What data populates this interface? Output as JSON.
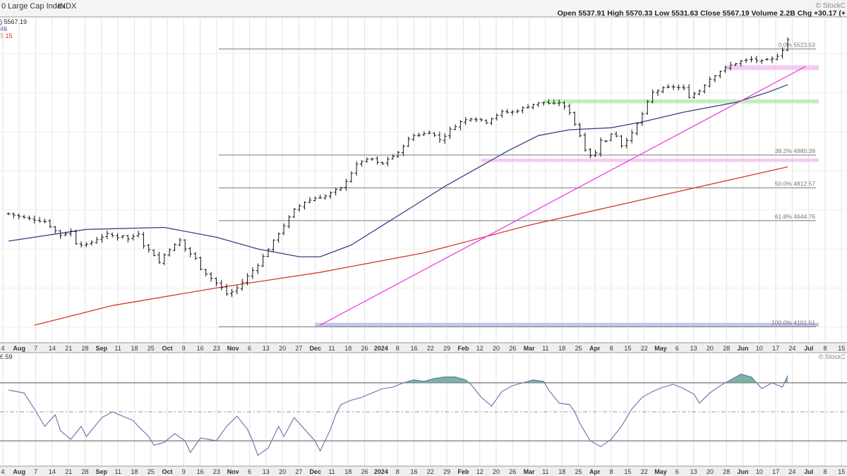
{
  "header": {
    "title": "0 Large Cap Index",
    "exchange": "INDX",
    "brand": "© StockC",
    "ohlc": "Open 5537.91  High 5570.33  Low 5531.63  Close 5567.19  Volume 2.2B  Chg +30.17 (+",
    "last_label": ") 5567.19",
    "ma50_label": "46",
    "ma200_label": "7.15",
    "brand2": "© StockC",
    "rsi_label": "6.59"
  },
  "colors": {
    "price": "#111111",
    "ma50": "#3b3f86",
    "ma200": "#d23a2a",
    "trendline": "#ee33dd",
    "fib_line": "#777777",
    "zone_green": "#b9eab0",
    "zone_pink": "#f2c3ee",
    "zone_blue": "#b9bde6",
    "rsi_line": "#6a6fa8",
    "rsi_fill": "#6ea89c",
    "grid": "#e2e2e2"
  },
  "chart_data": [
    {
      "type": "line",
      "subtype": "ohlc",
      "x_labels": [
        "4",
        "Aug",
        "7",
        "14",
        "21",
        "28",
        "Sep",
        "11",
        "18",
        "25",
        "Oct",
        "9",
        "16",
        "23",
        "Nov",
        "6",
        "13",
        "20",
        "27",
        "Dec",
        "11",
        "18",
        "26",
        "2024",
        "8",
        "16",
        "22",
        "29",
        "Feb",
        "12",
        "20",
        "26",
        "Mar",
        "11",
        "18",
        "25",
        "Apr",
        "8",
        "15",
        "22",
        "May",
        "6",
        "13",
        "20",
        "28",
        "Jun",
        "10",
        "17",
        "24",
        "Jul",
        "8",
        "15"
      ],
      "y_range": [
        4020,
        5680
      ],
      "fib_levels": [
        {
          "label": "0.0% 5523.53",
          "value": 5523.53
        },
        {
          "label": "38.2% 4980.39",
          "value": 4980.39
        },
        {
          "label": "50.0% 4812.57",
          "value": 4812.57
        },
        {
          "label": "61.8% 4644.76",
          "value": 4644.76
        },
        {
          "label": "100.0% 4101.51",
          "value": 4101.51
        }
      ],
      "close_path": [
        [
          0,
          4680
        ],
        [
          3,
          4660
        ],
        [
          7,
          4640
        ],
        [
          10,
          4570
        ],
        [
          12,
          4590
        ],
        [
          13,
          4530
        ],
        [
          15,
          4520
        ],
        [
          17,
          4550
        ],
        [
          19,
          4575
        ],
        [
          21,
          4560
        ],
        [
          22,
          4570
        ],
        [
          23,
          4550
        ],
        [
          25,
          4580
        ],
        [
          26,
          4520
        ],
        [
          28,
          4470
        ],
        [
          29,
          4430
        ],
        [
          30,
          4470
        ],
        [
          31,
          4500
        ],
        [
          32,
          4520
        ],
        [
          33,
          4545
        ],
        [
          34,
          4500
        ],
        [
          36,
          4450
        ],
        [
          37,
          4400
        ],
        [
          39,
          4350
        ],
        [
          41,
          4300
        ],
        [
          42,
          4270
        ],
        [
          43,
          4280
        ],
        [
          44,
          4300
        ],
        [
          45,
          4330
        ],
        [
          46,
          4360
        ],
        [
          47,
          4390
        ],
        [
          48,
          4420
        ],
        [
          49,
          4460
        ],
        [
          50,
          4500
        ],
        [
          51,
          4540
        ],
        [
          52,
          4580
        ],
        [
          53,
          4620
        ],
        [
          54,
          4660
        ],
        [
          55,
          4700
        ],
        [
          57,
          4740
        ],
        [
          59,
          4760
        ],
        [
          61,
          4770
        ],
        [
          63,
          4800
        ],
        [
          64,
          4810
        ],
        [
          66,
          4890
        ],
        [
          67,
          4930
        ],
        [
          68,
          4950
        ],
        [
          70,
          4960
        ],
        [
          71,
          4940
        ],
        [
          72,
          4935
        ],
        [
          73,
          4960
        ],
        [
          75,
          4990
        ],
        [
          76,
          5030
        ],
        [
          77,
          5060
        ],
        [
          78,
          5080
        ],
        [
          80,
          5090
        ],
        [
          81,
          5100
        ],
        [
          82,
          5080
        ],
        [
          83,
          5060
        ],
        [
          84,
          5080
        ],
        [
          85,
          5110
        ],
        [
          87,
          5150
        ],
        [
          89,
          5170
        ],
        [
          91,
          5160
        ],
        [
          92,
          5150
        ],
        [
          93,
          5170
        ],
        [
          95,
          5200
        ],
        [
          97,
          5200
        ],
        [
          98,
          5210
        ],
        [
          100,
          5230
        ],
        [
          101,
          5240
        ],
        [
          103,
          5250
        ],
        [
          105,
          5240
        ],
        [
          106,
          5250
        ],
        [
          108,
          5200
        ],
        [
          109,
          5140
        ],
        [
          110,
          5080
        ],
        [
          111,
          5010
        ],
        [
          112,
          4980
        ],
        [
          113,
          4990
        ],
        [
          114,
          5060
        ],
        [
          115,
          5050
        ],
        [
          116,
          5090
        ],
        [
          117,
          5080
        ],
        [
          118,
          5030
        ],
        [
          120,
          5090
        ],
        [
          122,
          5190
        ],
        [
          123,
          5250
        ],
        [
          124,
          5300
        ],
        [
          126,
          5320
        ],
        [
          128,
          5330
        ],
        [
          130,
          5320
        ],
        [
          131,
          5280
        ],
        [
          133,
          5310
        ],
        [
          134,
          5340
        ],
        [
          135,
          5370
        ],
        [
          137,
          5410
        ],
        [
          139,
          5440
        ],
        [
          141,
          5460
        ],
        [
          143,
          5470
        ],
        [
          145,
          5460
        ],
        [
          147,
          5470
        ],
        [
          148,
          5490
        ],
        [
          149,
          5520
        ],
        [
          150,
          5570
        ]
      ],
      "ma50_path": [
        [
          0,
          4540
        ],
        [
          15,
          4600
        ],
        [
          30,
          4610
        ],
        [
          40,
          4560
        ],
        [
          48,
          4500
        ],
        [
          56,
          4460
        ],
        [
          60,
          4460
        ],
        [
          66,
          4520
        ],
        [
          72,
          4620
        ],
        [
          78,
          4720
        ],
        [
          84,
          4820
        ],
        [
          90,
          4910
        ],
        [
          96,
          5000
        ],
        [
          102,
          5080
        ],
        [
          108,
          5110
        ],
        [
          116,
          5120
        ],
        [
          122,
          5150
        ],
        [
          130,
          5200
        ],
        [
          140,
          5250
        ],
        [
          146,
          5300
        ],
        [
          150,
          5340
        ]
      ],
      "ma200_path": [
        [
          5,
          4110
        ],
        [
          20,
          4210
        ],
        [
          40,
          4300
        ],
        [
          60,
          4380
        ],
        [
          80,
          4480
        ],
        [
          100,
          4620
        ],
        [
          120,
          4740
        ],
        [
          140,
          4860
        ],
        [
          150,
          4920
        ]
      ],
      "trendline": {
        "start": [
          60,
          4110
        ],
        "end": [
          150,
          5390
        ]
      },
      "zones": [
        {
          "color": "green",
          "from_index": 103,
          "to_index": 156,
          "low": 5245,
          "high": 5265
        },
        {
          "color": "pink",
          "from_index": 138,
          "to_index": 156,
          "low": 5415,
          "high": 5440
        },
        {
          "color": "pink",
          "from_index": 91,
          "to_index": 156,
          "low": 4945,
          "high": 4962
        },
        {
          "color": "blue",
          "from_index": 59,
          "to_index": 156,
          "low": 4102,
          "high": 4122
        }
      ]
    },
    {
      "type": "line",
      "subtype": "rsi",
      "x_labels": [
        "4",
        "Aug",
        "7",
        "14",
        "21",
        "28",
        "Sep",
        "11",
        "18",
        "25",
        "Oct",
        "9",
        "16",
        "23",
        "Nov",
        "6",
        "13",
        "20",
        "27",
        "Dec",
        "11",
        "18",
        "26",
        "2024",
        "8",
        "16",
        "22",
        "29",
        "Feb",
        "12",
        "20",
        "26",
        "Mar",
        "11",
        "18",
        "25",
        "Apr",
        "8",
        "15",
        "22",
        "May",
        "6",
        "13",
        "20",
        "28",
        "Jun",
        "10",
        "17",
        "24",
        "Jul",
        "8",
        "15"
      ],
      "y_range": [
        15,
        85
      ],
      "levels": [
        70,
        50,
        30
      ],
      "path": [
        [
          0,
          65
        ],
        [
          3,
          63
        ],
        [
          5,
          52
        ],
        [
          7,
          40
        ],
        [
          9,
          48
        ],
        [
          10,
          37
        ],
        [
          12,
          31
        ],
        [
          14,
          40
        ],
        [
          15,
          33
        ],
        [
          18,
          46
        ],
        [
          20,
          50
        ],
        [
          22,
          47
        ],
        [
          24,
          44
        ],
        [
          25,
          40
        ],
        [
          27,
          33
        ],
        [
          28,
          27
        ],
        [
          30,
          29
        ],
        [
          32,
          35
        ],
        [
          34,
          30
        ],
        [
          35,
          22
        ],
        [
          37,
          32
        ],
        [
          40,
          30
        ],
        [
          42,
          40
        ],
        [
          44,
          47
        ],
        [
          46,
          38
        ],
        [
          47,
          30
        ],
        [
          48,
          20
        ],
        [
          50,
          25
        ],
        [
          52,
          40
        ],
        [
          53,
          33
        ],
        [
          55,
          46
        ],
        [
          57,
          38
        ],
        [
          59,
          30
        ],
        [
          60,
          23
        ],
        [
          62,
          38
        ],
        [
          63,
          48
        ],
        [
          64,
          55
        ],
        [
          66,
          58
        ],
        [
          68,
          60
        ],
        [
          70,
          63
        ],
        [
          72,
          66
        ],
        [
          74,
          67
        ],
        [
          76,
          70
        ],
        [
          78,
          72
        ],
        [
          80,
          71
        ],
        [
          82,
          73
        ],
        [
          84,
          74
        ],
        [
          86,
          74
        ],
        [
          88,
          72
        ],
        [
          89,
          69
        ],
        [
          91,
          60
        ],
        [
          93,
          54
        ],
        [
          95,
          64
        ],
        [
          97,
          68
        ],
        [
          99,
          70
        ],
        [
          101,
          72
        ],
        [
          103,
          71
        ],
        [
          104,
          65
        ],
        [
          106,
          56
        ],
        [
          108,
          55
        ],
        [
          109,
          50
        ],
        [
          110,
          42
        ],
        [
          112,
          30
        ],
        [
          114,
          26
        ],
        [
          116,
          31
        ],
        [
          118,
          40
        ],
        [
          120,
          52
        ],
        [
          122,
          60
        ],
        [
          124,
          64
        ],
        [
          126,
          67
        ],
        [
          128,
          69
        ],
        [
          130,
          66
        ],
        [
          132,
          62
        ],
        [
          133,
          56
        ],
        [
          135,
          63
        ],
        [
          137,
          68
        ],
        [
          139,
          72
        ],
        [
          141,
          76
        ],
        [
          143,
          74
        ],
        [
          145,
          66
        ],
        [
          147,
          70
        ],
        [
          149,
          67
        ],
        [
          150,
          75
        ]
      ]
    }
  ]
}
